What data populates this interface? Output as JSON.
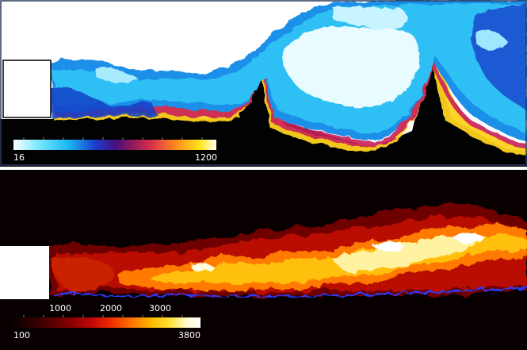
{
  "top_panel": {
    "colorbar": {
      "min_label": "16",
      "max_label": "1200",
      "colors": [
        "#ffffff",
        "#7be8ff",
        "#19b9f0",
        "#1a3fd0",
        "#45107e",
        "#8b1760",
        "#d8304a",
        "#ff8a1c",
        "#ffe51c",
        "#fffff0"
      ]
    }
  },
  "bottom_panel": {
    "colorbar": {
      "min_label": "100",
      "max_label": "3800",
      "contour_labels": [
        "1000",
        "2000",
        "3000"
      ],
      "colors": [
        "#0b0000",
        "#3a0000",
        "#7a0000",
        "#c00808",
        "#f02a00",
        "#ff7a00",
        "#ffb800",
        "#ffe23a",
        "#fffbd6",
        "#ffffff"
      ]
    }
  }
}
